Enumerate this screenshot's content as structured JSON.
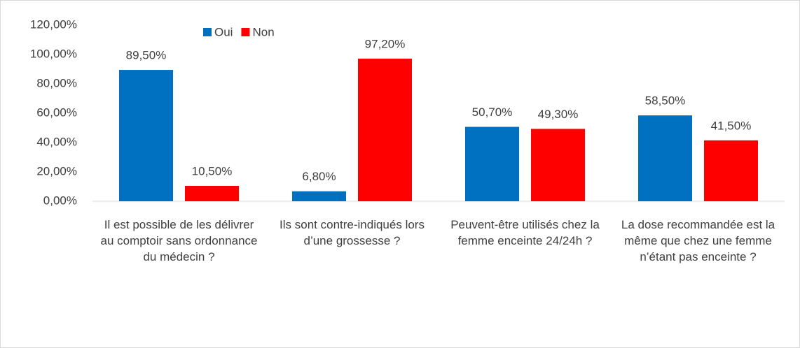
{
  "chart_data": {
    "type": "bar",
    "categories": [
      "Il est possible de les délivrer au comptoir sans ordonnance du médecin ?",
      "Ils sont contre-indiqués lors d’une grossesse ?",
      "Peuvent-être utilisés chez la femme enceinte 24/24h ?",
      "La dose recommandée est la même que chez une femme n’étant pas enceinte ?"
    ],
    "series": [
      {
        "name": "Oui",
        "color": "#0070c0",
        "values": [
          89.5,
          6.8,
          50.7,
          58.5
        ],
        "value_labels": [
          "89,50%",
          "6,80%",
          "50,70%",
          "58,50%"
        ]
      },
      {
        "name": "Non",
        "color": "#ff0000",
        "values": [
          10.5,
          97.2,
          49.3,
          41.5
        ],
        "value_labels": [
          "10,50%",
          "97,20%",
          "49,30%",
          "41,50%"
        ]
      }
    ],
    "ylim": [
      0,
      120
    ],
    "yticks": [
      {
        "value": 0,
        "label": "0,00%"
      },
      {
        "value": 20,
        "label": "20,00%"
      },
      {
        "value": 40,
        "label": "40,00%"
      },
      {
        "value": 60,
        "label": "60,00%"
      },
      {
        "value": 80,
        "label": "80,00%"
      },
      {
        "value": 100,
        "label": "100,00%"
      },
      {
        "value": 120,
        "label": "120,00%"
      }
    ],
    "grid": false,
    "legend": "top"
  }
}
